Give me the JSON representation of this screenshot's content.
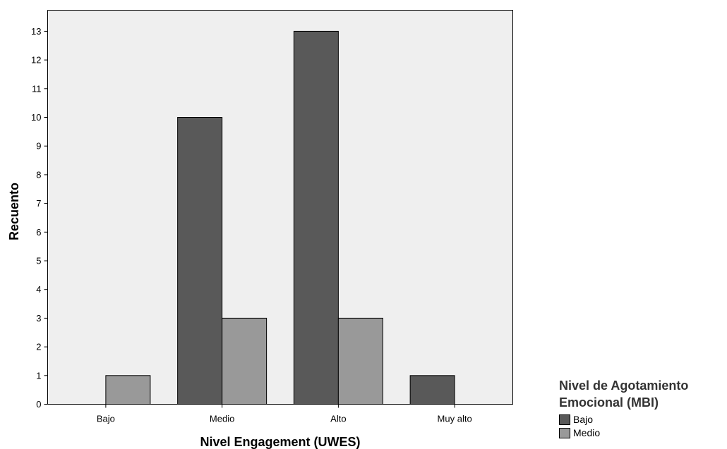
{
  "chart_data": {
    "type": "bar",
    "categories": [
      "Bajo",
      "Medio",
      "Alto",
      "Muy alto"
    ],
    "series": [
      {
        "name": "Bajo",
        "values": [
          0,
          10,
          13,
          1
        ],
        "color": "#595959"
      },
      {
        "name": "Medio",
        "values": [
          1,
          3,
          3,
          0
        ],
        "color": "#999999"
      }
    ],
    "xlabel": "Nivel Engagement (UWES)",
    "ylabel": "Recuento",
    "ylim": [
      0,
      14
    ],
    "yticks": [
      0,
      1,
      2,
      3,
      4,
      5,
      6,
      7,
      8,
      9,
      10,
      11,
      12,
      13
    ],
    "legend_title": "Nivel de Agotamiento Emocional (MBI)",
    "legend_title_lines": [
      "Nivel de Agotamiento",
      "Emocional (MBI)"
    ],
    "legend_position": "bottom-right",
    "grid": false,
    "plot_background": "#efefef"
  }
}
